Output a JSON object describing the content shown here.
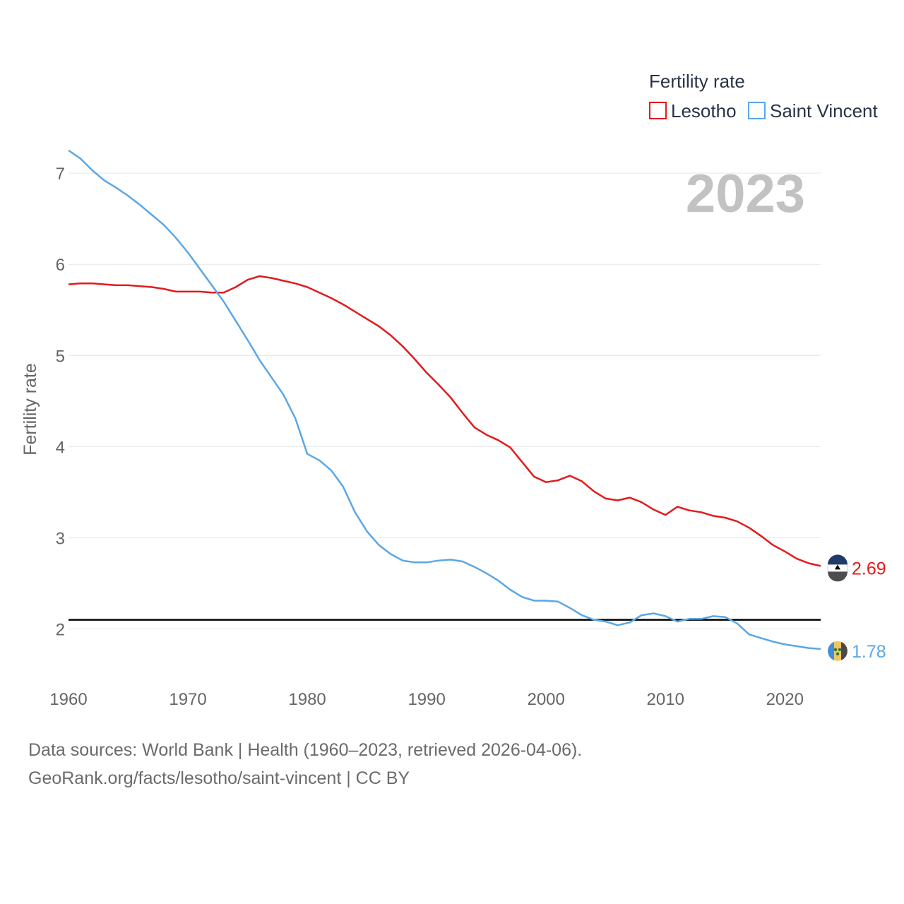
{
  "chart_data": {
    "type": "line",
    "title": "",
    "xlabel": "",
    "ylabel": "Fertility rate",
    "xlim": [
      1960,
      2023
    ],
    "ylim": [
      1.5,
      7.35
    ],
    "x_ticks": [
      1960,
      1970,
      1980,
      1990,
      2000,
      2010,
      2020
    ],
    "y_ticks": [
      2,
      3,
      4,
      5,
      6,
      7
    ],
    "year_label": "2023",
    "legend": {
      "title": "Fertility rate",
      "entries": [
        "Lesotho",
        "Saint Vincent"
      ]
    },
    "reference_line": {
      "y": 2.1
    },
    "x": [
      1960,
      1961,
      1962,
      1963,
      1964,
      1965,
      1966,
      1967,
      1968,
      1969,
      1970,
      1971,
      1972,
      1973,
      1974,
      1975,
      1976,
      1977,
      1978,
      1979,
      1980,
      1981,
      1982,
      1983,
      1984,
      1985,
      1986,
      1987,
      1988,
      1989,
      1990,
      1991,
      1992,
      1993,
      1994,
      1995,
      1996,
      1997,
      1998,
      1999,
      2000,
      2001,
      2002,
      2003,
      2004,
      2005,
      2006,
      2007,
      2008,
      2009,
      2010,
      2011,
      2012,
      2013,
      2014,
      2015,
      2016,
      2017,
      2018,
      2019,
      2020,
      2021,
      2022,
      2023
    ],
    "series": [
      {
        "name": "Lesotho",
        "color": "#e31a1c",
        "end_label": "2.69",
        "values": [
          5.78,
          5.79,
          5.79,
          5.78,
          5.77,
          5.77,
          5.76,
          5.75,
          5.73,
          5.7,
          5.7,
          5.7,
          5.69,
          5.69,
          5.75,
          5.83,
          5.87,
          5.85,
          5.82,
          5.79,
          5.75,
          5.69,
          5.63,
          5.56,
          5.48,
          5.4,
          5.32,
          5.22,
          5.1,
          4.96,
          4.81,
          4.68,
          4.54,
          4.37,
          4.21,
          4.13,
          4.07,
          3.99,
          3.83,
          3.67,
          3.61,
          3.63,
          3.68,
          3.62,
          3.51,
          3.43,
          3.41,
          3.44,
          3.39,
          3.31,
          3.25,
          3.34,
          3.3,
          3.28,
          3.24,
          3.22,
          3.18,
          3.11,
          3.02,
          2.92,
          2.85,
          2.77,
          2.72,
          2.69
        ]
      },
      {
        "name": "Saint Vincent",
        "color": "#5aa7e6",
        "end_label": "1.78",
        "values": [
          7.25,
          7.16,
          7.03,
          6.92,
          6.84,
          6.75,
          6.65,
          6.54,
          6.43,
          6.29,
          6.13,
          5.95,
          5.77,
          5.59,
          5.38,
          5.17,
          4.95,
          4.76,
          4.57,
          4.31,
          3.92,
          3.85,
          3.74,
          3.56,
          3.28,
          3.07,
          2.92,
          2.82,
          2.75,
          2.73,
          2.73,
          2.75,
          2.76,
          2.74,
          2.68,
          2.61,
          2.53,
          2.43,
          2.35,
          2.31,
          2.31,
          2.3,
          2.23,
          2.15,
          2.1,
          2.08,
          2.04,
          2.07,
          2.15,
          2.17,
          2.14,
          2.08,
          2.11,
          2.11,
          2.14,
          2.13,
          2.06,
          1.94,
          1.9,
          1.86,
          1.83,
          1.81,
          1.79,
          1.78
        ]
      }
    ]
  },
  "source": {
    "line1": "Data sources: World Bank | Health (1960–2023, retrieved 2026-04-06).",
    "line2": "GeoRank.org/facts/lesotho/saint-vincent | CC BY"
  }
}
